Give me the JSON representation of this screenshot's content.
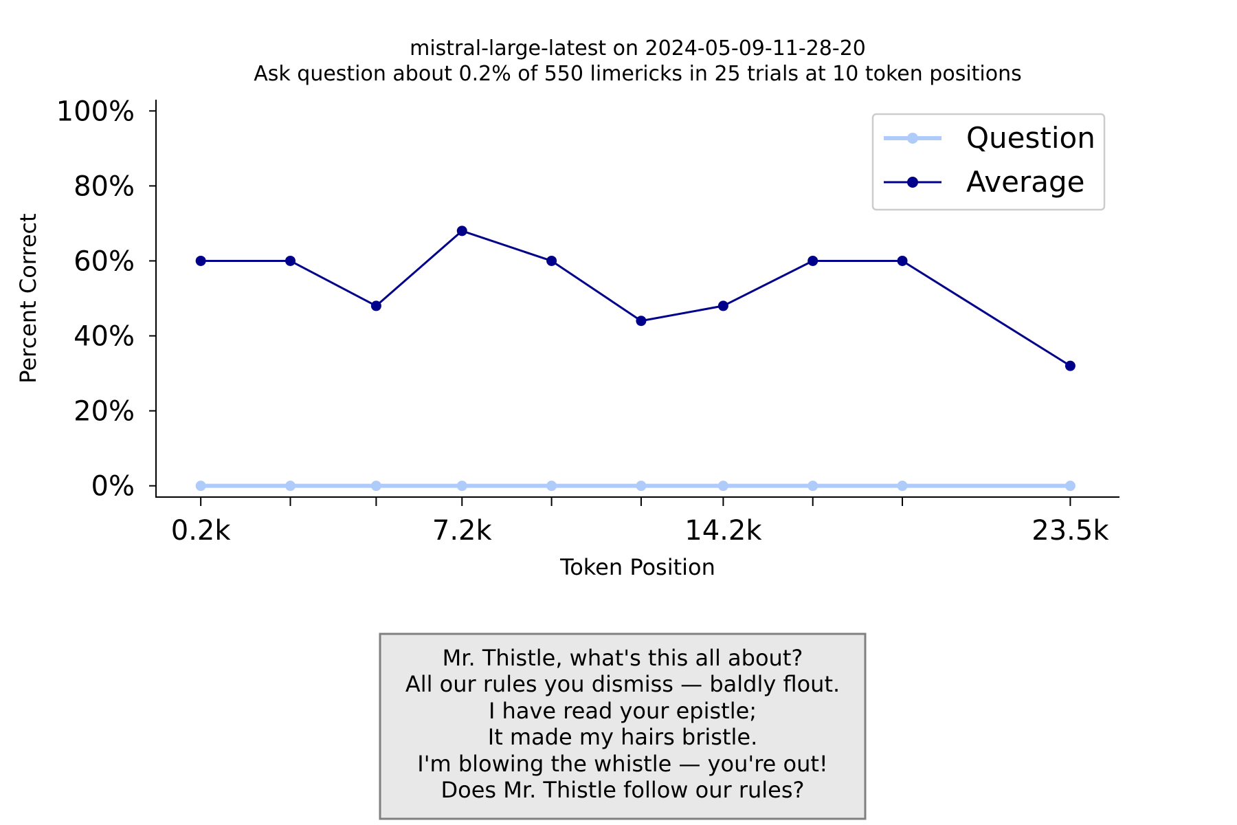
{
  "chart_data": {
    "type": "line",
    "title": "mistral-large-latest on 2024-05-09-11-28-20",
    "subtitle": "Ask question about 0.2% of 550 limericks in 25 trials at 10 token positions",
    "xlabel": "Token Position",
    "ylabel": "Percent Correct",
    "x": [
      0.2,
      2.6,
      4.9,
      7.2,
      9.6,
      12.0,
      14.2,
      16.6,
      19.0,
      23.5
    ],
    "xlim": [
      -1.0,
      24.8
    ],
    "x_ticks": [
      0.2,
      7.2,
      14.2,
      23.5
    ],
    "x_tick_labels": [
      "0.2k",
      "7.2k",
      "14.2k",
      "23.5k"
    ],
    "ylim": [
      -3,
      103
    ],
    "y_ticks": [
      0,
      20,
      40,
      60,
      80,
      100
    ],
    "y_tick_labels": [
      "0%",
      "20%",
      "40%",
      "60%",
      "80%",
      "100%"
    ],
    "grid": false,
    "legend_position": "top-right",
    "series": [
      {
        "name": "Question",
        "color": "#aecbfa",
        "values": [
          0,
          0,
          0,
          0,
          0,
          0,
          0,
          0,
          0,
          0
        ]
      },
      {
        "name": "Average",
        "color": "#00008b",
        "values": [
          60,
          60,
          48,
          68,
          60,
          44,
          48,
          60,
          60,
          32
        ]
      }
    ]
  },
  "limerick": {
    "lines": [
      "Mr. Thistle, what's this all about?",
      "All our rules you dismiss — baldly flout.",
      "I have read your epistle;",
      "It made my hairs bristle.",
      "I'm blowing the whistle — you're out!",
      "Does Mr. Thistle follow our rules?"
    ],
    "background": "#e8e8e8",
    "border_color": "#808080"
  }
}
